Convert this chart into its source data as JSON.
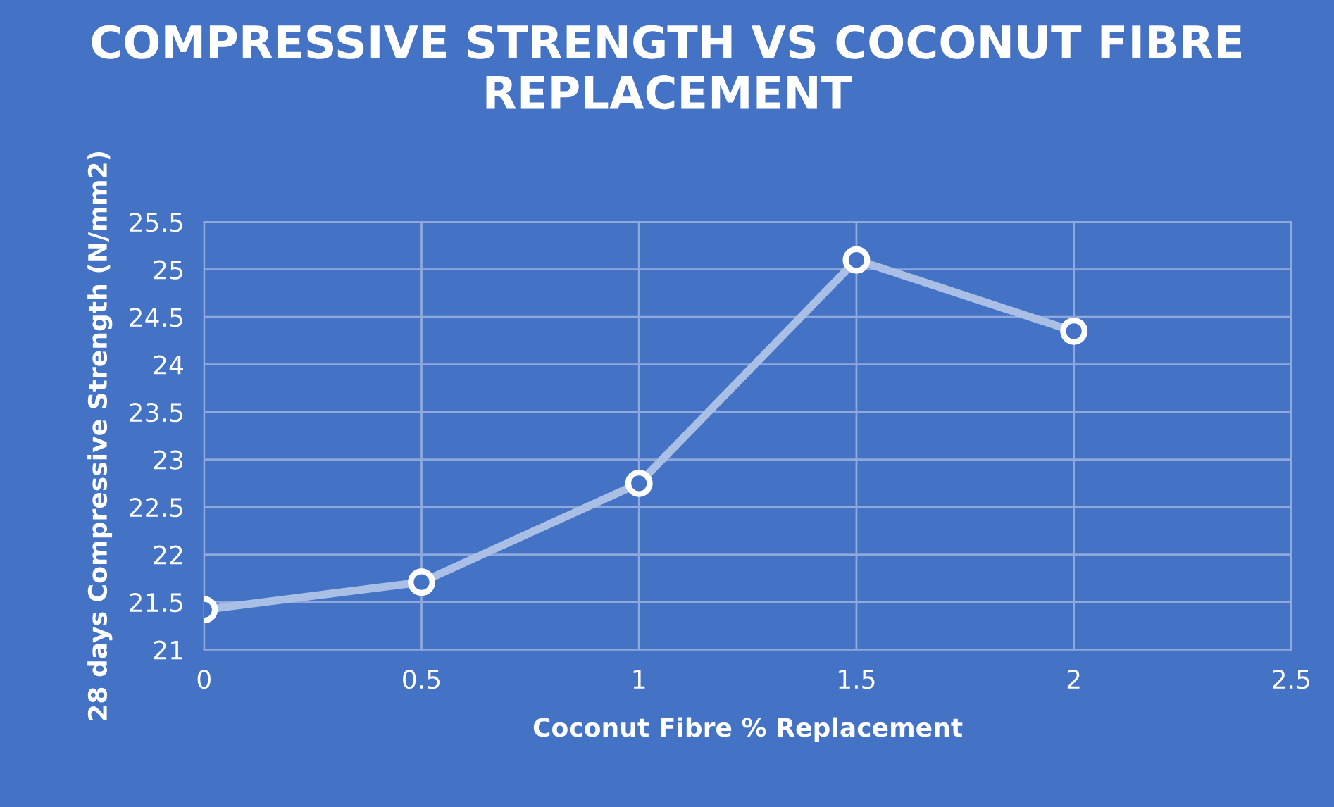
{
  "chart_data": {
    "type": "line",
    "title": "COMPRESSIVE STRENGTH VS COCONUT FIBRE REPLACEMENT",
    "xlabel": "Coconut Fibre % Replacement",
    "ylabel": "28 days Compressive Strength (N/mm2)",
    "x": [
      0,
      0.5,
      1,
      1.5,
      2
    ],
    "series": [
      {
        "color": "#a9bfe6",
        "values": [
          21.42,
          21.71,
          22.75,
          25.1,
          24.35
        ]
      }
    ],
    "xlim": [
      0,
      2.5
    ],
    "xticks": [
      0,
      0.5,
      1,
      1.5,
      2,
      2.5
    ],
    "ylim": [
      21,
      25.5
    ],
    "yticks": [
      21,
      21.5,
      22,
      22.5,
      23,
      23.5,
      24,
      24.5,
      25,
      25.5
    ],
    "grid": true,
    "marker": "circle",
    "line_style": "solid"
  }
}
